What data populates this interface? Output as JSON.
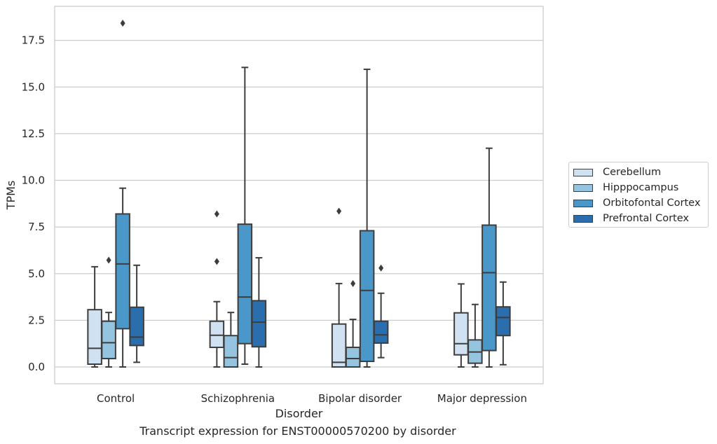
{
  "chart_data": {
    "type": "boxplot",
    "caption": "Transcript expression for ENST00000570200 by disorder",
    "xlabel": "Disorder",
    "ylabel": "TPMs",
    "ylim": [
      -0.9,
      19.3
    ],
    "yticks": [
      "0.0",
      "2.5",
      "5.0",
      "7.5",
      "10.0",
      "12.5",
      "15.0",
      "17.5"
    ],
    "ytick_values": [
      0,
      2.5,
      5,
      7.5,
      10,
      12.5,
      15,
      17.5
    ],
    "grid": true,
    "legend_position": "right",
    "categories": [
      "Control",
      "Schizophrenia",
      "Bipolar disorder",
      "Major depression"
    ],
    "series": [
      {
        "name": "Cerebellum",
        "color": "#d0e1f2",
        "boxes": [
          {
            "min": 0.0,
            "q1": 0.15,
            "median": 1.0,
            "q3": 3.07,
            "max": 5.37,
            "outliers": []
          },
          {
            "min": 0.0,
            "q1": 1.05,
            "median": 1.7,
            "q3": 2.45,
            "max": 3.5,
            "outliers": [
              8.2,
              5.65
            ]
          },
          {
            "min": 0.0,
            "q1": 0.0,
            "median": 0.25,
            "q3": 2.3,
            "max": 4.47,
            "outliers": [
              8.35
            ]
          },
          {
            "min": 0.0,
            "q1": 0.65,
            "median": 1.25,
            "q3": 2.9,
            "max": 4.45,
            "outliers": []
          }
        ]
      },
      {
        "name": "Hipppocampus",
        "color": "#94c4df",
        "boxes": [
          {
            "min": 0.0,
            "q1": 0.45,
            "median": 1.3,
            "q3": 2.45,
            "max": 2.92,
            "outliers": [
              5.72
            ]
          },
          {
            "min": 0.0,
            "q1": 0.0,
            "median": 0.5,
            "q3": 1.68,
            "max": 2.92,
            "outliers": []
          },
          {
            "min": 0.0,
            "q1": 0.0,
            "median": 0.45,
            "q3": 1.05,
            "max": 2.55,
            "outliers": [
              4.47
            ]
          },
          {
            "min": 0.0,
            "q1": 0.2,
            "median": 0.8,
            "q3": 1.45,
            "max": 3.35,
            "outliers": []
          }
        ]
      },
      {
        "name": "Orbitofontal Cortex",
        "color": "#4a98c9",
        "boxes": [
          {
            "min": 0.0,
            "q1": 2.05,
            "median": 5.52,
            "q3": 8.2,
            "max": 9.58,
            "outliers": [
              18.42
            ]
          },
          {
            "min": 0.15,
            "q1": 1.25,
            "median": 3.75,
            "q3": 7.65,
            "max": 16.05,
            "outliers": []
          },
          {
            "min": 0.0,
            "q1": 0.3,
            "median": 4.1,
            "q3": 7.3,
            "max": 15.95,
            "outliers": []
          },
          {
            "min": 0.0,
            "q1": 0.88,
            "median": 5.05,
            "q3": 7.6,
            "max": 11.72,
            "outliers": []
          }
        ]
      },
      {
        "name": "Prefrontal Cortex",
        "color": "#2b6ead",
        "boxes": [
          {
            "min": 0.25,
            "q1": 1.15,
            "median": 1.6,
            "q3": 3.2,
            "max": 5.45,
            "outliers": []
          },
          {
            "min": 0.0,
            "q1": 1.08,
            "median": 2.4,
            "q3": 3.55,
            "max": 5.85,
            "outliers": []
          },
          {
            "min": 0.5,
            "q1": 1.28,
            "median": 1.72,
            "q3": 2.45,
            "max": 3.95,
            "outliers": [
              5.3
            ]
          },
          {
            "min": 0.12,
            "q1": 1.68,
            "median": 2.65,
            "q3": 3.22,
            "max": 4.55,
            "outliers": []
          }
        ]
      }
    ]
  }
}
